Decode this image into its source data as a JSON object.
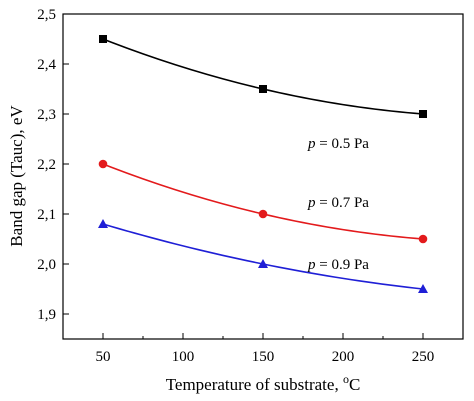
{
  "chart_data": {
    "type": "line",
    "title": "",
    "xlabel": "Temperature of substrate, ",
    "xlabel_unit": "C",
    "xlabel_superscript": "o",
    "ylabel": "Band gap (Tauc), eV",
    "xlim": [
      25,
      275
    ],
    "ylim": [
      1.85,
      2.5
    ],
    "x_ticks": [
      50,
      100,
      150,
      200,
      250
    ],
    "x_tick_labels": [
      "50",
      "100",
      "150",
      "200",
      "250"
    ],
    "y_ticks": [
      1.9,
      2.0,
      2.1,
      2.2,
      2.3,
      2.4,
      2.5
    ],
    "y_tick_labels": [
      "1,9",
      "2,0",
      "2,1",
      "2,2",
      "2,3",
      "2,4",
      "2,5"
    ],
    "grid": false,
    "legend": "none",
    "series": [
      {
        "x": [
          50,
          150,
          250
        ],
        "values": [
          2.45,
          2.35,
          2.3
        ],
        "color": "#000000",
        "marker": "square",
        "annotation_var": "p",
        "annotation_rest": " = 0.5 Pa"
      },
      {
        "x": [
          50,
          150,
          250
        ],
        "values": [
          2.2,
          2.1,
          2.05
        ],
        "color": "#e31a1c",
        "marker": "circle",
        "annotation_var": "p",
        "annotation_rest": " = 0.7 Pa"
      },
      {
        "x": [
          50,
          150,
          250
        ],
        "values": [
          2.08,
          2.0,
          1.95
        ],
        "color": "#1f1fd6",
        "marker": "triangle",
        "annotation_var": "p",
        "annotation_rest": " = 0.9 Pa"
      }
    ]
  }
}
